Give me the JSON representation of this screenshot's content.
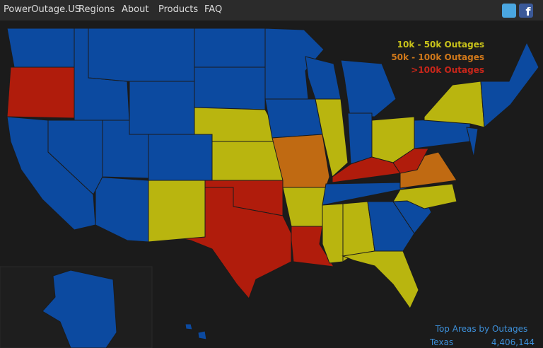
{
  "nav": {
    "brand": "PowerOutage.US",
    "links": [
      "Regions",
      "About",
      "Products",
      "FAQ"
    ]
  },
  "legend": {
    "items": [
      {
        "label": "10k - 50k Outages",
        "color": "#c8c21a"
      },
      {
        "label": "50k - 100k Outages",
        "color": "#d0781a"
      },
      {
        "label": ">100k Outages",
        "color": "#c8261a"
      }
    ]
  },
  "top_areas": {
    "title": "Top Areas by Outages",
    "rows": [
      {
        "name": "Texas",
        "value": "4,406,144"
      }
    ]
  }
}
